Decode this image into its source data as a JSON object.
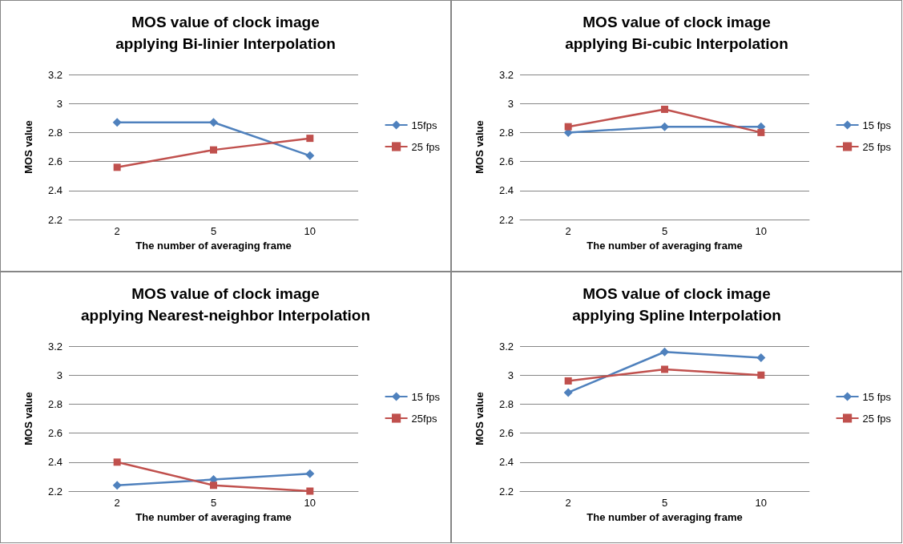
{
  "chart_data": [
    {
      "type": "line",
      "title": "MOS value of clock image\napplying Bi-linier Interpolation",
      "xlabel": "The number of averaging frame",
      "ylabel": "MOS value",
      "categories": [
        "2",
        "5",
        "10"
      ],
      "series": [
        {
          "name": "15fps",
          "color": "#4f81bd",
          "marker": "diamond",
          "values": [
            2.87,
            2.87,
            2.64
          ]
        },
        {
          "name": "25 fps",
          "color": "#c0504d",
          "marker": "square",
          "values": [
            2.56,
            2.68,
            2.76
          ]
        }
      ],
      "ylim": [
        2.2,
        3.2
      ],
      "yticks": [
        2.2,
        2.4,
        2.6,
        2.8,
        3,
        3.2
      ],
      "grid": "y",
      "legend": "right"
    },
    {
      "type": "line",
      "title": "MOS value of clock image\napplying Bi-cubic Interpolation",
      "xlabel": "The number of averaging frame",
      "ylabel": "MOS value",
      "categories": [
        "2",
        "5",
        "10"
      ],
      "series": [
        {
          "name": "15 fps",
          "color": "#4f81bd",
          "marker": "diamond",
          "values": [
            2.8,
            2.84,
            2.84
          ]
        },
        {
          "name": "25 fps",
          "color": "#c0504d",
          "marker": "square",
          "values": [
            2.84,
            2.96,
            2.8
          ]
        }
      ],
      "ylim": [
        2.2,
        3.2
      ],
      "yticks": [
        2.2,
        2.4,
        2.6,
        2.8,
        3,
        3.2
      ],
      "grid": "y",
      "legend": "right"
    },
    {
      "type": "line",
      "title": "MOS value of clock image\napplying Nearest-neighbor Interpolation",
      "xlabel": "The number of averaging frame",
      "ylabel": "MOS value",
      "categories": [
        "2",
        "5",
        "10"
      ],
      "series": [
        {
          "name": "15 fps",
          "color": "#4f81bd",
          "marker": "diamond",
          "values": [
            2.24,
            2.28,
            2.32
          ]
        },
        {
          "name": "25fps",
          "color": "#c0504d",
          "marker": "square",
          "values": [
            2.4,
            2.24,
            2.2
          ]
        }
      ],
      "ylim": [
        2.2,
        3.2
      ],
      "yticks": [
        2.2,
        2.4,
        2.6,
        2.8,
        3,
        3.2
      ],
      "grid": "y",
      "legend": "right"
    },
    {
      "type": "line",
      "title": "MOS value of clock image\napplying Spline Interpolation",
      "xlabel": "The number of averaging frame",
      "ylabel": "MOS value",
      "categories": [
        "2",
        "5",
        "10"
      ],
      "series": [
        {
          "name": "15 fps",
          "color": "#4f81bd",
          "marker": "diamond",
          "values": [
            2.88,
            3.16,
            3.12
          ]
        },
        {
          "name": "25 fps",
          "color": "#c0504d",
          "marker": "square",
          "values": [
            2.96,
            3.04,
            3.0
          ]
        }
      ],
      "ylim": [
        2.2,
        3.2
      ],
      "yticks": [
        2.2,
        2.4,
        2.6,
        2.8,
        3,
        3.2
      ],
      "grid": "y",
      "legend": "right"
    }
  ]
}
